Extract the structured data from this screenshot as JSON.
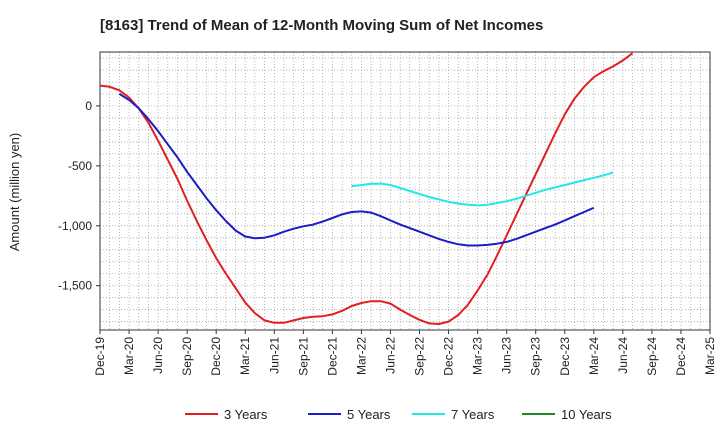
{
  "chart_data": {
    "type": "line",
    "title": "[8163]  Trend of Mean of 12-Month Moving Sum of Net Incomes",
    "xlabel": "",
    "ylabel": "Amount (million yen)",
    "ylim": [
      -1870,
      450
    ],
    "yticks": [
      0,
      -500,
      -1000,
      -1500
    ],
    "ytick_labels": [
      "0",
      "-500",
      "-1,000",
      "-1,500"
    ],
    "x_tick_labels": [
      "Dec-19",
      "Mar-20",
      "Jun-20",
      "Sep-20",
      "Dec-20",
      "Mar-21",
      "Jun-21",
      "Sep-21",
      "Dec-21",
      "Mar-22",
      "Jun-22",
      "Sep-22",
      "Dec-22",
      "Mar-23",
      "Jun-23",
      "Sep-23",
      "Dec-23",
      "Mar-24",
      "Jun-24",
      "Sep-24",
      "Dec-24",
      "Mar-25"
    ],
    "grid": true,
    "legend_position": "bottom",
    "series": [
      {
        "name": "3 Years",
        "color": "#e02020",
        "start_index": 0,
        "values": [
          170,
          160,
          130,
          70,
          -20,
          -140,
          -290,
          -450,
          -610,
          -790,
          -960,
          -1120,
          -1270,
          -1400,
          -1520,
          -1640,
          -1730,
          -1790,
          -1810,
          -1810,
          -1790,
          -1770,
          -1760,
          -1755,
          -1740,
          -1710,
          -1670,
          -1645,
          -1630,
          -1630,
          -1650,
          -1700,
          -1745,
          -1785,
          -1815,
          -1820,
          -1800,
          -1745,
          -1660,
          -1540,
          -1410,
          -1250,
          -1080,
          -910,
          -740,
          -570,
          -400,
          -230,
          -70,
          60,
          160,
          240,
          290,
          330,
          380,
          440
        ]
      },
      {
        "name": "5 Years",
        "color": "#1c1cc8",
        "start_index": 2,
        "values": [
          100,
          50,
          -20,
          -110,
          -210,
          -320,
          -430,
          -550,
          -660,
          -770,
          -870,
          -960,
          -1040,
          -1090,
          -1105,
          -1100,
          -1080,
          -1050,
          -1025,
          -1005,
          -990,
          -965,
          -935,
          -905,
          -885,
          -880,
          -890,
          -920,
          -955,
          -990,
          -1020,
          -1050,
          -1080,
          -1110,
          -1135,
          -1155,
          -1165,
          -1165,
          -1160,
          -1150,
          -1135,
          -1110,
          -1080,
          -1050,
          -1020,
          -990,
          -955,
          -920,
          -885,
          -850
        ]
      },
      {
        "name": "7 Years",
        "color": "#22e8e8",
        "start_index": 26,
        "values": [
          -670,
          -660,
          -650,
          -648,
          -660,
          -685,
          -710,
          -735,
          -760,
          -780,
          -800,
          -815,
          -825,
          -830,
          -825,
          -810,
          -795,
          -775,
          -750,
          -725,
          -700,
          -680,
          -660,
          -640,
          -620,
          -600,
          -580,
          -555
        ]
      },
      {
        "name": "10 Years",
        "color": "#1f8a1f",
        "start_index": 0,
        "values": []
      }
    ]
  }
}
